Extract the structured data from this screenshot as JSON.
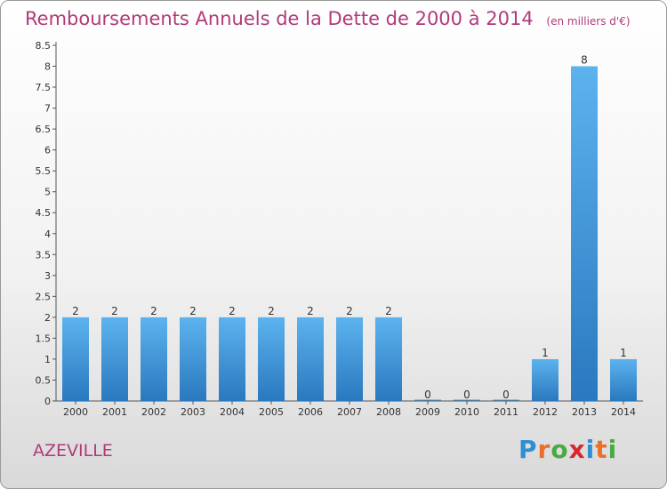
{
  "header": {
    "title": "Remboursements Annuels de la Dette de 2000 à 2014",
    "unit": "(en milliers d'€)"
  },
  "commune": "AZEVILLE",
  "logo": {
    "letters": [
      "P",
      "r",
      "o",
      "x",
      "i",
      "t",
      "i"
    ],
    "colors": [
      "#2f8fd5",
      "#e8702a",
      "#49a942",
      "#d7282f",
      "#2f8fd5",
      "#e8702a",
      "#49a942"
    ]
  },
  "chart_data": {
    "type": "bar",
    "categories": [
      "2000",
      "2001",
      "2002",
      "2003",
      "2004",
      "2005",
      "2006",
      "2007",
      "2008",
      "2009",
      "2010",
      "2011",
      "2012",
      "2013",
      "2014"
    ],
    "values": [
      2,
      2,
      2,
      2,
      2,
      2,
      2,
      2,
      2,
      0,
      0,
      0,
      1,
      8,
      1
    ],
    "data_labels": [
      "2",
      "2",
      "2",
      "2",
      "2",
      "2",
      "2",
      "2",
      "2",
      "0",
      "0",
      "0",
      "1",
      "8",
      "1"
    ],
    "y_ticks": [
      "0",
      "0.5",
      "1",
      "1.5",
      "2",
      "2.5",
      "3",
      "3.5",
      "4",
      "4.5",
      "5",
      "5.5",
      "6",
      "6.5",
      "7",
      "7.5",
      "8",
      "8.5"
    ],
    "ylim": [
      0,
      8.5
    ],
    "grid": false,
    "bar_color": "#4a9fe0"
  }
}
